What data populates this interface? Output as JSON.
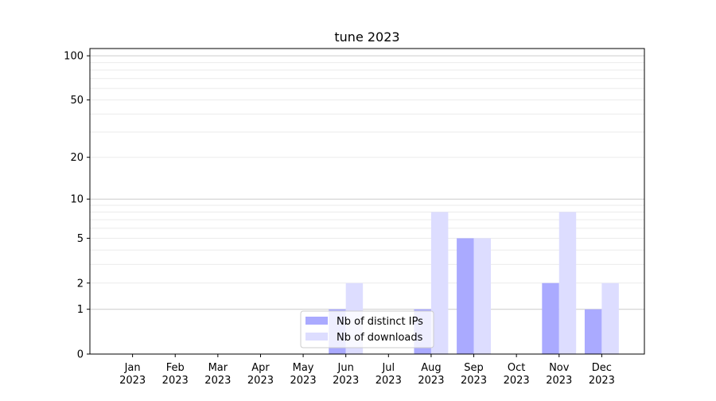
{
  "chart_data": {
    "type": "bar",
    "title": "tune 2023",
    "xlabel": "",
    "ylabel": "",
    "y_scale": "symlog (log of 1+y)",
    "ylim": [
      0,
      112
    ],
    "y_ticks": [
      0,
      1,
      2,
      5,
      10,
      20,
      50,
      100
    ],
    "grid": "horizontal, major and minor",
    "categories": [
      "Jan\n2023",
      "Feb\n2023",
      "Mar\n2023",
      "Apr\n2023",
      "May\n2023",
      "Jun\n2023",
      "Jul\n2023",
      "Aug\n2023",
      "Sep\n2023",
      "Oct\n2023",
      "Nov\n2023",
      "Dec\n2023"
    ],
    "series": [
      {
        "name": "Nb of distinct IPs",
        "color": "#aaaaff",
        "values": [
          0,
          0,
          0,
          0,
          0,
          1,
          0,
          1,
          5,
          0,
          2,
          1
        ]
      },
      {
        "name": "Nb of downloads",
        "color": "#ddddff",
        "values": [
          0,
          0,
          0,
          0,
          0,
          2,
          0,
          8,
          5,
          0,
          8,
          2
        ]
      }
    ],
    "legend": "lower-center"
  }
}
